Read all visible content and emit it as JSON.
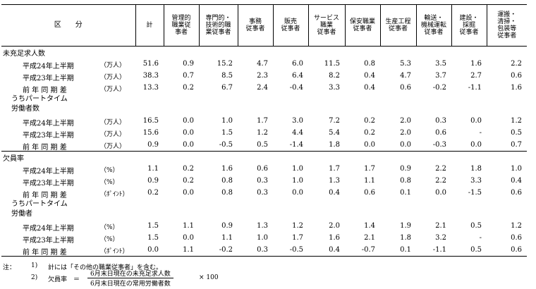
{
  "table": {
    "header": [
      [
        "区　　分"
      ],
      [
        "計"
      ],
      [
        "管理的",
        "職業従",
        "事者"
      ],
      [
        "専門的・",
        "技術的職",
        "業従事者"
      ],
      [
        "事務",
        "従事者"
      ],
      [
        "販売",
        "従事者"
      ],
      [
        "サービス",
        "職業",
        "従事者"
      ],
      [
        "保安職業",
        "従事者"
      ],
      [
        "生産工程",
        "従事者"
      ],
      [
        "輸送・",
        "機械運転",
        "従事者"
      ],
      [
        "建設・",
        "採掘",
        "従事者"
      ],
      [
        "運搬・",
        "清掃・",
        "包装等",
        "従事者"
      ]
    ],
    "sections": [
      {
        "label": [
          "未充足求人数"
        ],
        "rows": [
          {
            "label": "平成24年上半期",
            "unit": "（万人）",
            "values": [
              "51.6",
              "0.9",
              "15.2",
              "4.7",
              "6.0",
              "11.5",
              "0.8",
              "5.3",
              "3.5",
              "1.6",
              "2.2"
            ]
          },
          {
            "label": "平成23年上半期",
            "unit": "（万人）",
            "values": [
              "38.3",
              "0.7",
              "8.5",
              "2.3",
              "6.4",
              "8.2",
              "0.4",
              "4.7",
              "3.7",
              "2.7",
              "0.6"
            ]
          },
          {
            "label": "前 年 同 期 差",
            "unit": "（万人）",
            "values": [
              "13.3",
              "0.2",
              "6.7",
              "2.4",
              "-0.4",
              "3.3",
              "0.4",
              "0.6",
              "-0.2",
              "-1.1",
              "1.6"
            ]
          }
        ]
      },
      {
        "label": [
          "うちパートタイム",
          "労働者数"
        ],
        "rows": [
          {
            "label": "平成24年上半期",
            "unit": "（万人）",
            "values": [
              "16.5",
              "0.0",
              "1.0",
              "1.7",
              "3.0",
              "7.2",
              "0.2",
              "2.0",
              "0.3",
              "0.0",
              "1.2"
            ]
          },
          {
            "label": "平成23年上半期",
            "unit": "（万人）",
            "values": [
              "15.6",
              "0.0",
              "1.5",
              "1.2",
              "4.4",
              "5.4",
              "0.2",
              "2.0",
              "0.6",
              "-",
              "0.5"
            ]
          },
          {
            "label": "前 年 同 期 差",
            "unit": "（万人）",
            "values": [
              "0.9",
              "0.0",
              "-0.5",
              "0.5",
              "-1.4",
              "1.8",
              "0.0",
              "0.0",
              "-0.3",
              "0.0",
              "0.7"
            ]
          }
        ]
      },
      {
        "label": [
          "欠員率"
        ],
        "rows": [
          {
            "label": "平成24年上半期",
            "unit": "（%）",
            "values": [
              "1.1",
              "0.2",
              "1.6",
              "0.6",
              "1.0",
              "1.7",
              "1.7",
              "0.9",
              "2.2",
              "1.8",
              "1.0"
            ]
          },
          {
            "label": "平成23年上半期",
            "unit": "（%）",
            "values": [
              "0.9",
              "0.2",
              "0.8",
              "0.3",
              "1.0",
              "1.3",
              "1.1",
              "0.8",
              "2.2",
              "3.3",
              "0.4"
            ]
          },
          {
            "label": "前 年 同 期 差",
            "unit": "（ﾎﾟｲﾝﾄ）",
            "values": [
              "0.2",
              "0.0",
              "0.8",
              "0.3",
              "0.0",
              "0.4",
              "0.6",
              "0.1",
              "0.0",
              "-1.5",
              "0.6"
            ]
          }
        ]
      },
      {
        "label": [
          "うちパートタイム",
          "労働者"
        ],
        "rows": [
          {
            "label": "平成24年上半期",
            "unit": "（%）",
            "values": [
              "1.5",
              "1.1",
              "0.9",
              "1.3",
              "1.2",
              "2.0",
              "1.4",
              "1.9",
              "2.1",
              "0.5",
              "1.2"
            ]
          },
          {
            "label": "平成23年上半期",
            "unit": "（%）",
            "values": [
              "1.5",
              "0.0",
              "1.1",
              "1.0",
              "1.7",
              "1.6",
              "2.1",
              "1.8",
              "3.2",
              "-",
              "0.6"
            ]
          },
          {
            "label": "前 年 同 期 差",
            "unit": "（ﾎﾟｲﾝﾄ）",
            "values": [
              "0.0",
              "1.1",
              "-0.2",
              "0.3",
              "-0.5",
              "0.4",
              "-0.7",
              "0.1",
              "-1.1",
              "0.5",
              "0.6"
            ]
          }
        ]
      }
    ]
  },
  "notes": {
    "prefix": "注：",
    "note1": {
      "number": "1)",
      "text": "計には「その他の職業従事者」を含む。"
    },
    "note2": {
      "number": "2)",
      "term": "欠員率",
      "equals": "＝",
      "numerator": "6月末日現在の未充足求人数",
      "denominator": "6月末日現在の常用労働者数",
      "multiplier": "× 100"
    }
  }
}
